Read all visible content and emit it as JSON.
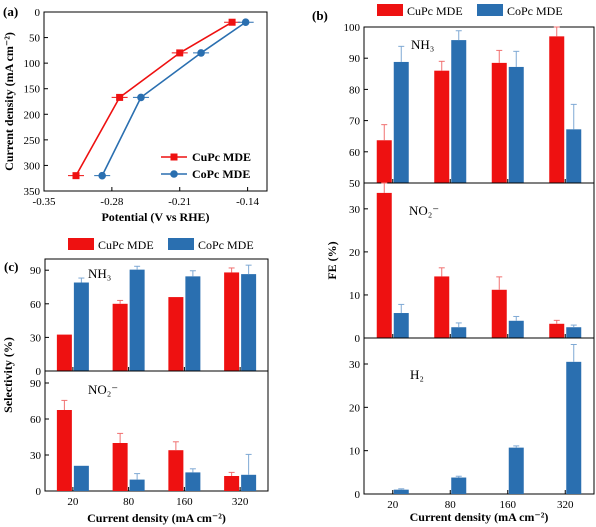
{
  "colors": {
    "cupc": "#ee1111",
    "copc": "#2a6fb0",
    "axis": "#000000"
  },
  "panel_labels": {
    "a": "(a)",
    "b": "(b)",
    "c": "(c)"
  },
  "chart_data": [
    {
      "panel": "(a)",
      "type": "line",
      "xlabel": "Potential (V vs RHE)",
      "ylabel": "Current density (mA cm⁻²)",
      "xlim": [
        -0.35,
        -0.12
      ],
      "ylim": [
        0,
        350
      ],
      "y_inverted": true,
      "x_ticks": [
        "-0.35",
        "-0.28",
        "-0.21",
        "-0.14"
      ],
      "y_ticks": [
        "0",
        "50",
        "100",
        "150",
        "200",
        "250",
        "300",
        "350"
      ],
      "legend_position": "lower-right",
      "series": [
        {
          "name": "CuPc MDE",
          "marker": "square",
          "x": [
            -0.317,
            -0.272,
            -0.21,
            -0.156
          ],
          "y": [
            320,
            167,
            80,
            20
          ]
        },
        {
          "name": "CoPc MDE",
          "marker": "circle",
          "x": [
            -0.29,
            -0.25,
            -0.188,
            -0.142
          ],
          "y": [
            320,
            167,
            80,
            20
          ]
        }
      ]
    },
    {
      "panel": "(b)",
      "type": "bar",
      "xlabel": "Current density (mA cm⁻²)",
      "ylabel": "FE (%)",
      "categories": [
        "20",
        "80",
        "160",
        "320"
      ],
      "legend": [
        "CuPc MDE",
        "CoPc MDE"
      ],
      "subplots": [
        {
          "label": "NH₃",
          "ylim": [
            50,
            100
          ],
          "y_ticks": [
            "50",
            "60",
            "70",
            "80",
            "90",
            "100"
          ],
          "series": [
            {
              "name": "CuPc MDE",
              "values": [
                63.7,
                86.0,
                88.5,
                97.0
              ],
              "errors": [
                5.0,
                3.0,
                4.0,
                3.0
              ]
            },
            {
              "name": "CoPc MDE",
              "values": [
                88.8,
                95.8,
                87.2,
                67.2
              ],
              "errors": [
                5.0,
                3.0,
                5.0,
                8.0
              ]
            }
          ]
        },
        {
          "label": "NO₂⁻",
          "ylim": [
            0,
            36
          ],
          "y_ticks": [
            "0",
            "10",
            "20",
            "30"
          ],
          "series": [
            {
              "name": "CuPc MDE",
              "values": [
                33.7,
                14.3,
                11.2,
                3.3
              ],
              "errors": [
                2.5,
                2.0,
                3.0,
                0.8
              ]
            },
            {
              "name": "CoPc MDE",
              "values": [
                5.8,
                2.5,
                4.0,
                2.5
              ],
              "errors": [
                2.0,
                1.0,
                1.0,
                0.5
              ]
            }
          ]
        },
        {
          "label": "H₂",
          "ylim": [
            0,
            36
          ],
          "y_ticks": [
            "0",
            "10",
            "20",
            "30"
          ],
          "series": [
            {
              "name": "CuPc MDE",
              "values": [
                0,
                0,
                0,
                0
              ],
              "errors": [
                0,
                0,
                0,
                0
              ]
            },
            {
              "name": "CoPc MDE",
              "values": [
                1.0,
                3.8,
                10.7,
                30.5
              ],
              "errors": [
                0.2,
                0.3,
                0.4,
                4.0
              ]
            }
          ]
        }
      ]
    },
    {
      "panel": "(c)",
      "type": "bar",
      "xlabel": "Current density (mA cm⁻²)",
      "ylabel": "Selectivity (%)",
      "categories": [
        "20",
        "80",
        "160",
        "320"
      ],
      "legend": [
        "CuPc MDE",
        "CoPc MDE"
      ],
      "subplots": [
        {
          "label": "NH₃",
          "ylim": [
            0,
            100
          ],
          "y_ticks": [
            "0",
            "30",
            "60",
            "90"
          ],
          "series": [
            {
              "name": "CuPc MDE",
              "values": [
                32.5,
                60.0,
                66.0,
                88.0
              ],
              "errors": [
                0,
                3.0,
                0,
                4.0
              ]
            },
            {
              "name": "CoPc MDE",
              "values": [
                79.0,
                90.5,
                84.5,
                86.5
              ],
              "errors": [
                4.0,
                3.0,
                5.0,
                8.0
              ]
            }
          ]
        },
        {
          "label": "NO₂⁻",
          "ylim": [
            0,
            100
          ],
          "y_ticks": [
            "0",
            "30",
            "60",
            "90"
          ],
          "series": [
            {
              "name": "CuPc MDE",
              "values": [
                67.5,
                40.0,
                34.0,
                12.5
              ],
              "errors": [
                8.0,
                8.0,
                7.0,
                3.0
              ]
            },
            {
              "name": "CoPc MDE",
              "values": [
                21.0,
                9.5,
                15.5,
                13.5
              ],
              "errors": [
                0,
                5.0,
                3.0,
                17.0
              ]
            }
          ]
        }
      ]
    }
  ]
}
